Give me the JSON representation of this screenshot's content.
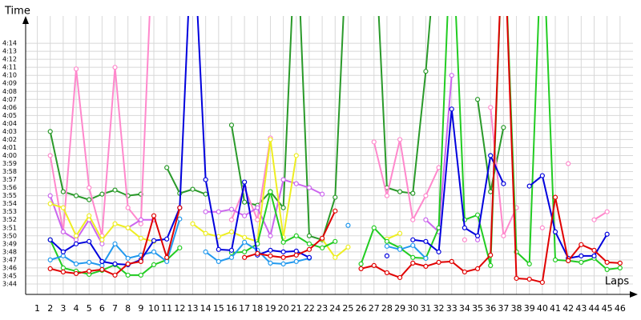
{
  "chart_data": {
    "type": "line",
    "y_title": "Time",
    "x_title": "Laps",
    "grid": true,
    "x": [
      1,
      2,
      3,
      4,
      5,
      6,
      7,
      8,
      9,
      10,
      11,
      12,
      13,
      14,
      15,
      16,
      17,
      18,
      19,
      20,
      21,
      22,
      23,
      24,
      25,
      26,
      27,
      28,
      29,
      30,
      31,
      32,
      33,
      34,
      35,
      36,
      37,
      38,
      39,
      40,
      41,
      42,
      43,
      44,
      45,
      46
    ],
    "xlim": [
      0.1,
      47
    ],
    "xticks": [
      1,
      2,
      3,
      4,
      5,
      6,
      7,
      8,
      9,
      10,
      11,
      12,
      13,
      14,
      15,
      16,
      17,
      18,
      19,
      20,
      21,
      22,
      23,
      24,
      25,
      26,
      27,
      28,
      29,
      30,
      31,
      32,
      33,
      34,
      35,
      36,
      37,
      38,
      39,
      40,
      41,
      42,
      43,
      44,
      45,
      46
    ],
    "ylim": [
      222.7,
      256.6
    ],
    "yticks": [
      {
        "value": 224,
        "label": "3:44"
      },
      {
        "value": 225,
        "label": "3:45"
      },
      {
        "value": 226,
        "label": "3:46"
      },
      {
        "value": 227,
        "label": "3:47"
      },
      {
        "value": 228,
        "label": "3:48"
      },
      {
        "value": 229,
        "label": "3:49"
      },
      {
        "value": 230,
        "label": "3:50"
      },
      {
        "value": 231,
        "label": "3:51"
      },
      {
        "value": 232,
        "label": "3:52"
      },
      {
        "value": 233,
        "label": "3:53"
      },
      {
        "value": 234,
        "label": "3:54"
      },
      {
        "value": 235,
        "label": "3:55"
      },
      {
        "value": 236,
        "label": "3:56"
      },
      {
        "value": 237,
        "label": "3:57"
      },
      {
        "value": 238,
        "label": "3:58"
      },
      {
        "value": 239,
        "label": "3:59"
      },
      {
        "value": 240,
        "label": "4:00"
      },
      {
        "value": 241,
        "label": "4:01"
      },
      {
        "value": 242,
        "label": "4:02"
      },
      {
        "value": 243,
        "label": "4:03"
      },
      {
        "value": 244,
        "label": "4:04"
      },
      {
        "value": 245,
        "label": "4:05"
      },
      {
        "value": 246,
        "label": "4:06"
      },
      {
        "value": 247,
        "label": "4:07"
      },
      {
        "value": 248,
        "label": "4:08"
      },
      {
        "value": 249,
        "label": "4:09"
      },
      {
        "value": 250,
        "label": "4:10"
      },
      {
        "value": 251,
        "label": "4:11"
      },
      {
        "value": 252,
        "label": "4:12"
      },
      {
        "value": 253,
        "label": "4:13"
      },
      {
        "value": 254,
        "label": "4:14"
      }
    ],
    "series": [
      {
        "color": "#2a9a2a",
        "values": [
          null,
          243,
          235.5,
          235,
          234.5,
          235.2,
          235.7,
          235,
          235.2,
          null,
          238.5,
          235.3,
          235.8,
          235.2,
          null,
          243.8,
          234.2,
          233.8,
          235.5,
          233.5,
          270,
          230,
          229.5,
          234.8,
          270,
          null,
          270,
          236,
          235.5,
          235.3,
          250.5,
          270,
          null,
          null,
          247,
          235.5,
          243.5,
          null,
          null,
          null,
          null,
          null,
          null,
          null,
          null,
          null
        ]
      },
      {
        "color": "#ff88cc",
        "values": [
          null,
          240,
          230.5,
          250.8,
          236,
          230,
          251,
          233.5,
          231.5,
          270,
          null,
          null,
          null,
          null,
          null,
          232,
          236,
          232,
          242.2,
          null,
          null,
          null,
          null,
          null,
          null,
          null,
          241.7,
          235,
          242,
          232,
          235,
          238.5,
          null,
          229.5,
          null,
          246,
          230,
          233.5,
          null,
          231,
          null,
          239,
          null,
          232,
          233,
          null
        ]
      },
      {
        "color": "#cc66ee",
        "values": [
          null,
          235,
          230.5,
          229.5,
          232,
          229,
          null,
          231,
          232,
          232,
          null,
          null,
          null,
          233,
          233,
          233.3,
          232.5,
          233.5,
          230,
          237,
          236.5,
          236,
          235.2,
          null,
          null,
          null,
          null,
          null,
          null,
          null,
          232,
          230.5,
          250,
          null,
          229.5,
          null,
          null,
          null,
          null,
          null,
          null,
          null,
          null,
          null,
          null,
          null
        ]
      },
      {
        "color": "#eeee22",
        "values": [
          null,
          234,
          233.5,
          230,
          232.5,
          229.5,
          231.5,
          231,
          229.7,
          229.3,
          null,
          null,
          231.5,
          230.3,
          229.9,
          230.5,
          229.8,
          229.3,
          242,
          229.8,
          240,
          null,
          229.6,
          227.3,
          228.6,
          null,
          null,
          229.6,
          230.3,
          null,
          null,
          null,
          null,
          null,
          null,
          null,
          null,
          null,
          null,
          null,
          null,
          null,
          null,
          null,
          null,
          null
        ]
      },
      {
        "color": "#22cc22",
        "values": [
          null,
          229.5,
          226,
          225.6,
          225.2,
          225.7,
          226.4,
          225.1,
          225.1,
          226.4,
          227,
          228.5,
          null,
          null,
          null,
          227.9,
          228,
          229,
          235.5,
          229.2,
          230,
          229,
          228.5,
          229.3,
          null,
          226.5,
          231,
          229.3,
          228.5,
          227.3,
          227.2,
          231,
          270,
          232,
          232.6,
          226.3,
          270,
          228,
          226.5,
          270,
          227,
          226.9,
          226.7,
          227.2,
          225.8,
          226
        ]
      },
      {
        "color": "#2299ee",
        "values": [
          null,
          227,
          227.5,
          226.5,
          226.7,
          226.3,
          229,
          227.2,
          227.6,
          228,
          226.8,
          232.1,
          null,
          228,
          226.8,
          227.3,
          229.2,
          228.2,
          226.6,
          226.5,
          226.8,
          227.2,
          null,
          null,
          231.3,
          null,
          null,
          228.7,
          228.3,
          228.8,
          227.2,
          null,
          null,
          null,
          null,
          null,
          null,
          null,
          null,
          null,
          null,
          null,
          null,
          null,
          null,
          null
        ]
      },
      {
        "color": "#0000dd",
        "values": [
          null,
          229.5,
          228,
          229,
          229.3,
          226.8,
          226.5,
          226.4,
          227,
          229.4,
          229.6,
          233.5,
          270,
          237,
          228.3,
          228.2,
          236.7,
          227.6,
          228.2,
          228,
          228.1,
          227.3,
          null,
          null,
          null,
          null,
          null,
          227.5,
          null,
          229.5,
          229.3,
          228,
          245.8,
          231,
          230,
          240,
          236.5,
          null,
          236.2,
          237.5,
          230.5,
          227.2,
          227.5,
          227.5,
          230.2,
          null
        ]
      },
      {
        "color": "#e00000",
        "values": [
          null,
          225.9,
          225.5,
          225.3,
          225.6,
          225.8,
          225.1,
          226.5,
          226.8,
          232.5,
          227.3,
          233.5,
          null,
          null,
          null,
          null,
          227.3,
          227.8,
          227.5,
          227.3,
          227.6,
          228.3,
          229.7,
          233.1,
          null,
          225.9,
          226.3,
          225.4,
          224.8,
          226.6,
          226.2,
          226.7,
          226.8,
          225.5,
          225.9,
          227.6,
          270,
          224.7,
          224.6,
          224.2,
          234.8,
          226.9,
          228.9,
          228.2,
          226.7,
          226.6
        ]
      }
    ]
  }
}
